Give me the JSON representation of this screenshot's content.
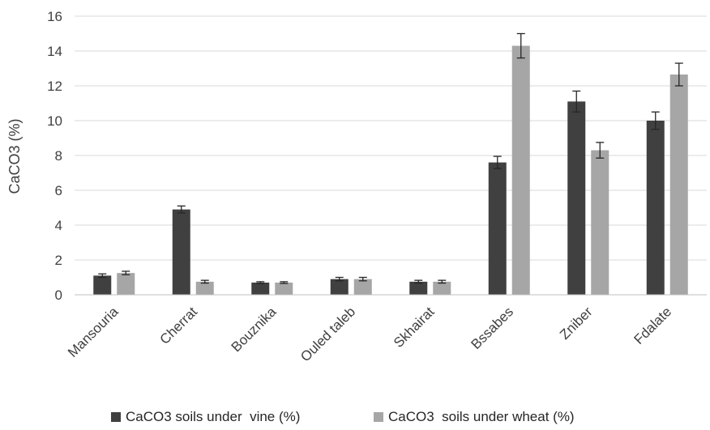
{
  "chart_data": {
    "type": "bar",
    "title": "",
    "xlabel": "",
    "ylabel": "CaCO3 (%)",
    "ylim": [
      0,
      16
    ],
    "yticks": [
      0,
      2,
      4,
      6,
      8,
      10,
      12,
      14,
      16
    ],
    "grid": true,
    "legend_position": "bottom",
    "categories": [
      "Mansouria",
      "Cherrat",
      "Bouznika",
      "Ouled taleb",
      "Skhairat",
      "Bssabes",
      "Zniber",
      "Fdalate"
    ],
    "series": [
      {
        "name": "CaCO3 soils under  vine (%)",
        "color": "#404040",
        "values": [
          1.1,
          4.9,
          0.7,
          0.9,
          0.75,
          7.6,
          11.1,
          10.0
        ],
        "errors": [
          0.1,
          0.2,
          0.05,
          0.1,
          0.08,
          0.35,
          0.6,
          0.5
        ]
      },
      {
        "name": "CaCO3  soils under wheat (%)",
        "color": "#a6a6a6",
        "values": [
          1.25,
          0.75,
          0.7,
          0.9,
          0.75,
          14.3,
          8.3,
          12.65
        ],
        "errors": [
          0.1,
          0.08,
          0.05,
          0.1,
          0.08,
          0.7,
          0.45,
          0.65
        ]
      }
    ]
  }
}
